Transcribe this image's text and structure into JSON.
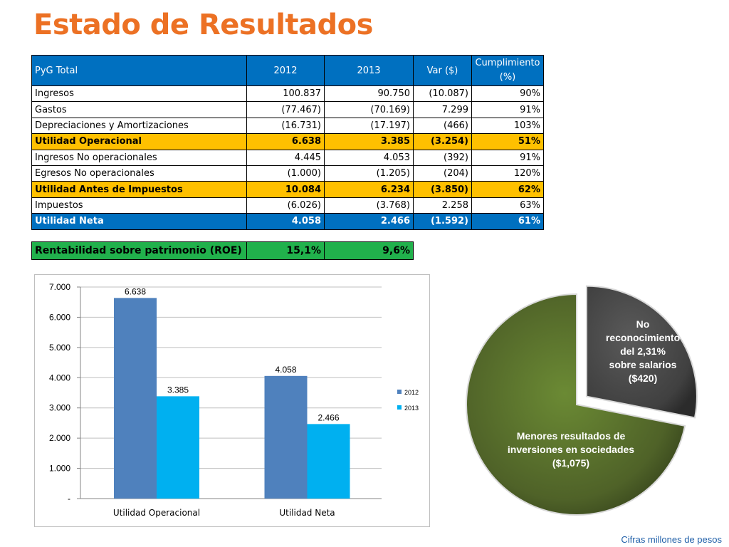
{
  "title": "Estado de Resultados",
  "table": {
    "headers": [
      "PyG Total",
      "2012",
      "2013",
      "Var ($)",
      "Cumplimiento (%)"
    ],
    "rows": [
      {
        "label": "Ingresos",
        "v2012": "100.837",
        "v2013": "90.750",
        "var": "(10.087)",
        "cump": "90%",
        "style": "plain"
      },
      {
        "label": "Gastos",
        "v2012": "(77.467)",
        "v2013": "(70.169)",
        "var": "7.299",
        "cump": "91%",
        "style": "plain"
      },
      {
        "label": "Depreciaciones y Amortizaciones",
        "v2012": "(16.731)",
        "v2013": "(17.197)",
        "var": "(466)",
        "cump": "103%",
        "style": "plain"
      },
      {
        "label": "Utilidad Operacional",
        "v2012": "6.638",
        "v2013": "3.385",
        "var": "(3.254)",
        "cump": "51%",
        "style": "hl"
      },
      {
        "label": "Ingresos No operacionales",
        "v2012": "4.445",
        "v2013": "4.053",
        "var": "(392)",
        "cump": "91%",
        "style": "plain"
      },
      {
        "label": "Egresos No operacionales",
        "v2012": "(1.000)",
        "v2013": "(1.205)",
        "var": "(204)",
        "cump": "120%",
        "style": "plain"
      },
      {
        "label": "Utilidad Antes de Impuestos",
        "v2012": "10.084",
        "v2013": "6.234",
        "var": "(3.850)",
        "cump": "62%",
        "style": "hl"
      },
      {
        "label": "Impuestos",
        "v2012": "(6.026)",
        "v2013": "(3.768)",
        "var": "2.258",
        "cump": "63%",
        "style": "plain"
      },
      {
        "label": "Utilidad Neta",
        "v2012": "4.058",
        "v2013": "2.466",
        "var": "(1.592)",
        "cump": "61%",
        "style": "net"
      }
    ]
  },
  "roe": {
    "label": "Rentabilidad sobre patrimonio (ROE)",
    "v2012": "15,1%",
    "v2013": "9,6%"
  },
  "chart_data": [
    {
      "type": "bar",
      "categories": [
        "Utilidad Operacional",
        "Utilidad Neta"
      ],
      "series": [
        {
          "name": "2012",
          "values": [
            6638,
            4058
          ],
          "labels": [
            "6.638",
            "4.058"
          ],
          "color": "#4f81bd"
        },
        {
          "name": "2013",
          "values": [
            3385,
            2466
          ],
          "labels": [
            "3.385",
            "2.466"
          ],
          "color": "#00b0f0"
        }
      ],
      "ylim": [
        0,
        7000
      ],
      "yticks": [
        0,
        1000,
        2000,
        3000,
        4000,
        5000,
        6000,
        7000
      ],
      "ytick_labels": [
        "-",
        "1.000",
        "2.000",
        "3.000",
        "4.000",
        "5.000",
        "6.000",
        "7.000"
      ],
      "grid": true,
      "legend": "right"
    },
    {
      "type": "pie",
      "slices": [
        {
          "label": "No reconocimiento del 2,31% sobre salarios ($420)",
          "value": 420,
          "color": "#404040",
          "exploded": true
        },
        {
          "label": "Menores resultados de inversiones en sociedades ($1,075)",
          "value": 1075,
          "color": "#4f6228"
        }
      ]
    }
  ],
  "pie_text": {
    "small": [
      "No",
      "reconocimiento",
      "del 2,31%",
      "sobre salarios",
      "($420)"
    ],
    "large": [
      "Menores resultados de",
      "inversiones en sociedades",
      "($1,075)"
    ]
  },
  "footer": "Cifras millones de pesos"
}
